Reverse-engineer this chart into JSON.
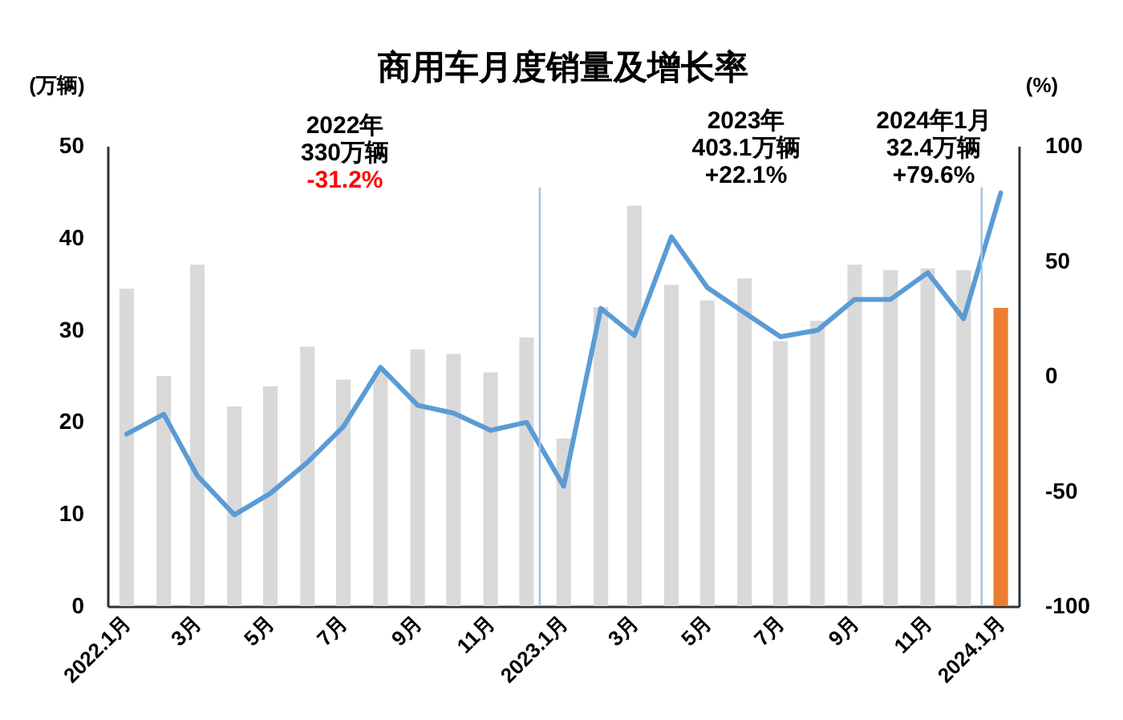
{
  "chart_data": {
    "type": "bar",
    "title": "商用车月度销量及增长率",
    "ylabel": "(万辆)",
    "y2label": "(%)",
    "x": [
      "2022-01",
      "2022-02",
      "2022-03",
      "2022-04",
      "2022-05",
      "2022-06",
      "2022-07",
      "2022-08",
      "2022-09",
      "2022-10",
      "2022-11",
      "2022-12",
      "2023-01",
      "2023-02",
      "2023-03",
      "2023-04",
      "2023-05",
      "2023-06",
      "2023-07",
      "2023-08",
      "2023-09",
      "2023-10",
      "2023-11",
      "2023-12",
      "2024-01"
    ],
    "xlim": [
      "2021-12-16",
      "2024-01-16"
    ],
    "xticks": [
      {
        "value": "2022-01",
        "label": "2022.1月"
      },
      {
        "value": "2022-03",
        "label": "3月"
      },
      {
        "value": "2022-05",
        "label": "5月"
      },
      {
        "value": "2022-07",
        "label": "7月"
      },
      {
        "value": "2022-09",
        "label": "9月"
      },
      {
        "value": "2022-11",
        "label": "11月"
      },
      {
        "value": "2023-01",
        "label": "2023.1月"
      },
      {
        "value": "2023-03",
        "label": "3月"
      },
      {
        "value": "2023-05",
        "label": "5月"
      },
      {
        "value": "2023-07",
        "label": "7月"
      },
      {
        "value": "2023-09",
        "label": "9月"
      },
      {
        "value": "2023-11",
        "label": "11月"
      },
      {
        "value": "2024-01",
        "label": "2024.1月"
      }
    ],
    "series": [
      {
        "colors": [
          "#d9d9d9",
          "#d9d9d9",
          "#d9d9d9",
          "#d9d9d9",
          "#d9d9d9",
          "#d9d9d9",
          "#d9d9d9",
          "#d9d9d9",
          "#d9d9d9",
          "#d9d9d9",
          "#d9d9d9",
          "#d9d9d9",
          "#d9d9d9",
          "#d9d9d9",
          "#d9d9d9",
          "#d9d9d9",
          "#d9d9d9",
          "#d9d9d9",
          "#d9d9d9",
          "#d9d9d9",
          "#d9d9d9",
          "#d9d9d9",
          "#d9d9d9",
          "#d9d9d9",
          "#ed7d31"
        ],
        "values": [
          34.5,
          25.0,
          37.1,
          21.7,
          23.9,
          28.2,
          24.6,
          25.5,
          27.9,
          27.4,
          25.4,
          29.2,
          18.2,
          32.5,
          43.5,
          34.9,
          33.2,
          35.6,
          28.8,
          31.0,
          37.1,
          36.5,
          36.7,
          36.5,
          32.4
        ]
      },
      {
        "type": "line",
        "axis": "y2",
        "color": "#5b9bd5",
        "values": [
          -25.2,
          -16.6,
          -43.3,
          -60.3,
          -51.0,
          -37.5,
          -22.0,
          3.8,
          -12.7,
          -16.1,
          -23.6,
          -20.1,
          -47.9,
          29.4,
          17.6,
          60.5,
          38.4,
          27.5,
          17.1,
          19.9,
          33.3,
          33.3,
          44.9,
          24.9,
          79.6
        ]
      }
    ],
    "ylim": [
      0,
      50
    ],
    "yticks": [
      0,
      10,
      20,
      30,
      40,
      50
    ],
    "y2lim": [
      -100,
      100
    ],
    "y2ticks": [
      -100,
      -50,
      0,
      50,
      100
    ],
    "ref_lines": [
      {
        "axis": "x",
        "value": "2022-12-12",
        "color": "#9dc3e6"
      },
      {
        "axis": "x",
        "value": "2023-12-16",
        "color": "#9dc3e6"
      }
    ],
    "annotations": [
      "2022年\n330万辆\n-31.2%",
      "2023年\n403.1万辆\n+22.1%",
      "2024年1月\n32.4万辆\n+79.6%"
    ]
  }
}
